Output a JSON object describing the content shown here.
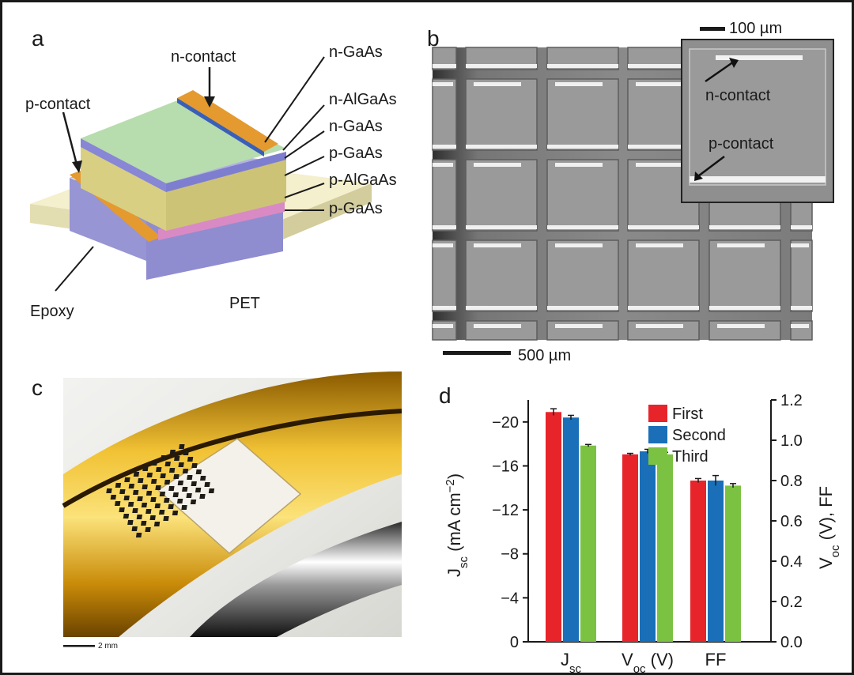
{
  "panels": {
    "a": {
      "letter": "a",
      "labels": {
        "n_contact": "n-contact",
        "p_contact": "p-contact",
        "layer1": "n-GaAs",
        "layer2": "n-AlGaAs",
        "layer3": "n-GaAs",
        "layer4": "p-GaAs",
        "layer5": "p-AlGaAs",
        "layer6": "p-GaAs",
        "epoxy": "Epoxy",
        "pet": "PET"
      }
    },
    "b": {
      "letter": "b",
      "scale_main": "500 µm",
      "scale_inset": "100 µm",
      "inset_n": "n-contact",
      "inset_p": "p-contact"
    },
    "c": {
      "letter": "c",
      "scale": "2 mm"
    },
    "d": {
      "letter": "d"
    }
  },
  "chart_data": {
    "type": "bar",
    "categories": [
      "Jsc",
      "Voc (V)",
      "FF"
    ],
    "series": [
      {
        "name": "First",
        "color": "#e8242b",
        "values": [
          -20.9,
          0.93,
          0.8
        ],
        "errors": [
          0.3,
          0.005,
          0.01
        ]
      },
      {
        "name": "Second",
        "color": "#1a6fb8",
        "values": [
          -20.4,
          0.945,
          0.8
        ],
        "errors": [
          0.2,
          0.01,
          0.025
        ]
      },
      {
        "name": "Third",
        "color": "#7cc242",
        "values": [
          -17.85,
          0.93,
          0.775
        ],
        "errors": [
          0.1,
          0.01,
          0.01
        ]
      }
    ],
    "left_axis": {
      "ticks": [
        "-20",
        "-16",
        "-12",
        "-8",
        "-4",
        "0"
      ],
      "ylim": [
        0,
        -22
      ]
    },
    "right_axis": {
      "ticks": [
        "1.2",
        "1.0",
        "0.8",
        "0.6",
        "0.4",
        "0.2",
        "0.0"
      ],
      "ylim": [
        0,
        1.2
      ]
    },
    "legend": "top-right"
  }
}
